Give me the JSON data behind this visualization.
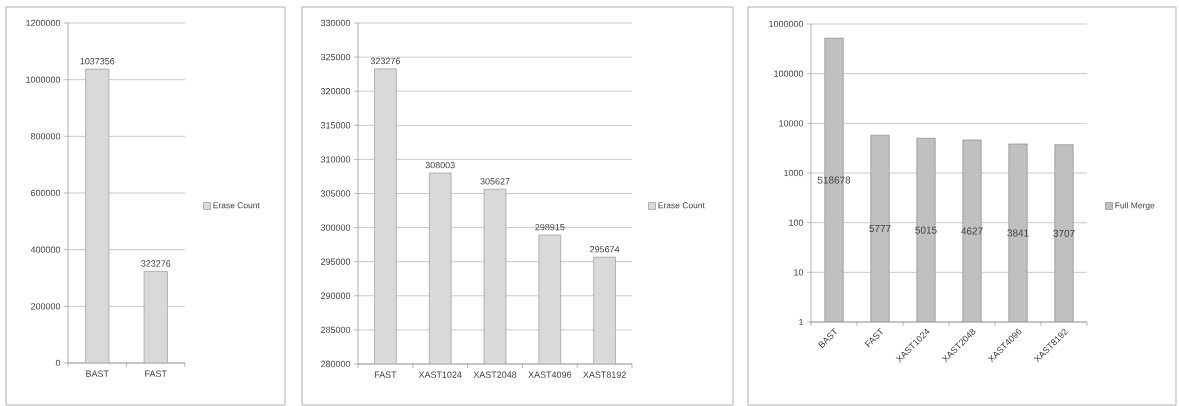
{
  "chart_data": [
    {
      "type": "bar",
      "categories": [
        "BAST",
        "FAST"
      ],
      "series": [
        {
          "name": "Erase Count",
          "color": "#d9d9d9",
          "values": [
            1037356,
            323276
          ]
        }
      ],
      "ylim": [
        0,
        1200000
      ],
      "yticks": [
        0,
        200000,
        400000,
        600000,
        800000,
        1000000,
        1200000
      ],
      "grid": "y",
      "legend": "right",
      "data_labels": true
    },
    {
      "type": "bar",
      "categories": [
        "FAST",
        "XAST1024",
        "XAST2048",
        "XAST4096",
        "XAST8192"
      ],
      "series": [
        {
          "name": "Erase Count",
          "color": "#d9d9d9",
          "values": [
            323276,
            308003,
            305627,
            298915,
            295674
          ]
        }
      ],
      "ylim": [
        280000,
        330000
      ],
      "yticks": [
        280000,
        285000,
        290000,
        295000,
        300000,
        305000,
        310000,
        315000,
        320000,
        325000,
        330000
      ],
      "grid": "y",
      "legend": "right",
      "data_labels": true
    },
    {
      "type": "bar",
      "categories": [
        "BAST",
        "FAST",
        "XAST1024",
        "XAST2048",
        "XAST4096",
        "XAST8192"
      ],
      "series": [
        {
          "name": "Full Merge",
          "color": "#c0c0c0",
          "values": [
            518678,
            5777,
            5015,
            4627,
            3841,
            3707
          ]
        }
      ],
      "ylim": [
        1,
        1000000
      ],
      "yticks": [
        1,
        10,
        100,
        1000,
        10000,
        100000,
        1000000
      ],
      "log": true,
      "grid": "y",
      "legend": "right",
      "data_labels": true
    }
  ]
}
